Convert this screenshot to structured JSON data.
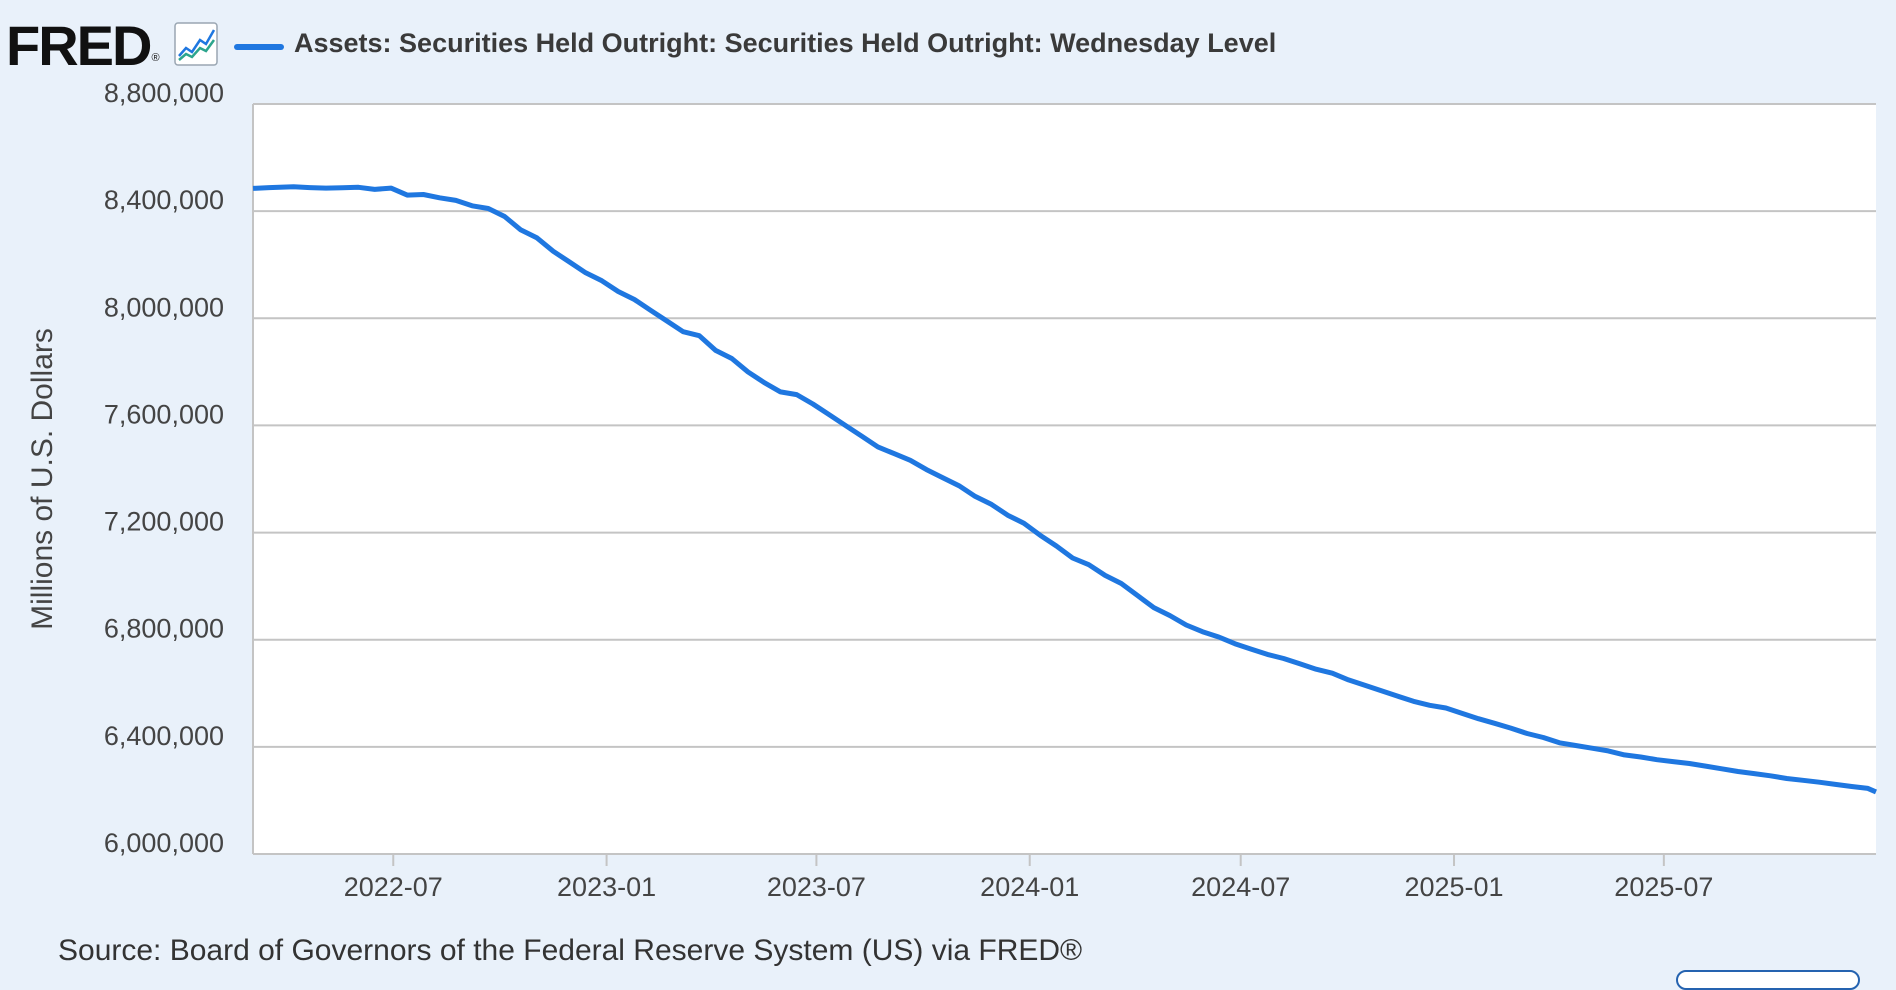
{
  "header": {
    "logo_text": "FRED",
    "logo_mark": "®",
    "logo_icon": "line-graph-icon",
    "legend_label": "Assets: Securities Held Outright: Securities Held Outright: Wednesday Level"
  },
  "source": "Source: Board of Governors of the Federal Reserve System (US) via FRED®",
  "colors": {
    "series": "#1f77e0",
    "grid": "#c4c4c4",
    "background": "#e9f1fa",
    "plot_bg": "#ffffff"
  },
  "chart_data": {
    "type": "line",
    "title": "",
    "xlabel": "",
    "ylabel": "Millions of U.S. Dollars",
    "ylim": [
      6000000,
      8800000
    ],
    "xlim": [
      "2022-03-02",
      "2025-12-31"
    ],
    "y_ticks": [
      "6,000,000",
      "6,400,000",
      "6,800,000",
      "7,200,000",
      "7,600,000",
      "8,000,000",
      "8,400,000",
      "8,800,000"
    ],
    "x_ticks": [
      "2022-07",
      "2023-01",
      "2023-07",
      "2024-01",
      "2024-07",
      "2025-01",
      "2025-07"
    ],
    "grid": true,
    "legend": "top-left",
    "series": [
      {
        "name": "Assets: Securities Held Outright: Securities Held Outright: Wednesday Level",
        "points": [
          [
            "2022-03-02",
            8485000
          ],
          [
            "2022-03-16",
            8488000
          ],
          [
            "2022-04-06",
            8491000
          ],
          [
            "2022-04-20",
            8488000
          ],
          [
            "2022-05-04",
            8486000
          ],
          [
            "2022-05-18",
            8487000
          ],
          [
            "2022-06-01",
            8489000
          ],
          [
            "2022-06-15",
            8481000
          ],
          [
            "2022-06-29",
            8486000
          ],
          [
            "2022-07-13",
            8460000
          ],
          [
            "2022-07-27",
            8462000
          ],
          [
            "2022-08-10",
            8450000
          ],
          [
            "2022-08-24",
            8440000
          ],
          [
            "2022-09-07",
            8420000
          ],
          [
            "2022-09-21",
            8410000
          ],
          [
            "2022-10-05",
            8380000
          ],
          [
            "2022-10-19",
            8330000
          ],
          [
            "2022-11-02",
            8300000
          ],
          [
            "2022-11-16",
            8250000
          ],
          [
            "2022-11-30",
            8210000
          ],
          [
            "2022-12-14",
            8170000
          ],
          [
            "2022-12-28",
            8140000
          ],
          [
            "2023-01-11",
            8100000
          ],
          [
            "2023-01-25",
            8070000
          ],
          [
            "2023-02-08",
            8030000
          ],
          [
            "2023-02-22",
            7990000
          ],
          [
            "2023-03-08",
            7950000
          ],
          [
            "2023-03-22",
            7935000
          ],
          [
            "2023-04-05",
            7880000
          ],
          [
            "2023-04-19",
            7850000
          ],
          [
            "2023-05-03",
            7800000
          ],
          [
            "2023-05-17",
            7760000
          ],
          [
            "2023-05-31",
            7725000
          ],
          [
            "2023-06-14",
            7715000
          ],
          [
            "2023-06-28",
            7680000
          ],
          [
            "2023-07-12",
            7640000
          ],
          [
            "2023-07-26",
            7600000
          ],
          [
            "2023-08-09",
            7560000
          ],
          [
            "2023-08-23",
            7520000
          ],
          [
            "2023-09-06",
            7495000
          ],
          [
            "2023-09-20",
            7470000
          ],
          [
            "2023-10-04",
            7435000
          ],
          [
            "2023-10-18",
            7405000
          ],
          [
            "2023-11-01",
            7375000
          ],
          [
            "2023-11-15",
            7335000
          ],
          [
            "2023-11-29",
            7305000
          ],
          [
            "2023-12-13",
            7265000
          ],
          [
            "2023-12-27",
            7235000
          ],
          [
            "2024-01-10",
            7190000
          ],
          [
            "2024-01-24",
            7150000
          ],
          [
            "2024-02-07",
            7105000
          ],
          [
            "2024-02-21",
            7080000
          ],
          [
            "2024-03-06",
            7040000
          ],
          [
            "2024-03-20",
            7010000
          ],
          [
            "2024-04-03",
            6965000
          ],
          [
            "2024-04-17",
            6920000
          ],
          [
            "2024-05-01",
            6890000
          ],
          [
            "2024-05-15",
            6855000
          ],
          [
            "2024-05-29",
            6830000
          ],
          [
            "2024-06-12",
            6810000
          ],
          [
            "2024-06-26",
            6785000
          ],
          [
            "2024-07-10",
            6765000
          ],
          [
            "2024-07-24",
            6745000
          ],
          [
            "2024-08-07",
            6730000
          ],
          [
            "2024-08-21",
            6710000
          ],
          [
            "2024-09-04",
            6690000
          ],
          [
            "2024-09-18",
            6675000
          ],
          [
            "2024-10-02",
            6650000
          ],
          [
            "2024-10-16",
            6630000
          ],
          [
            "2024-10-30",
            6610000
          ],
          [
            "2024-11-13",
            6590000
          ],
          [
            "2024-11-27",
            6570000
          ],
          [
            "2024-12-11",
            6555000
          ],
          [
            "2024-12-25",
            6545000
          ],
          [
            "2025-01-08",
            6525000
          ],
          [
            "2025-01-22",
            6505000
          ],
          [
            "2025-02-05",
            6488000
          ],
          [
            "2025-02-19",
            6470000
          ],
          [
            "2025-03-05",
            6450000
          ],
          [
            "2025-03-19",
            6435000
          ],
          [
            "2025-04-02",
            6415000
          ],
          [
            "2025-04-16",
            6405000
          ],
          [
            "2025-04-30",
            6395000
          ],
          [
            "2025-05-14",
            6385000
          ],
          [
            "2025-05-28",
            6370000
          ],
          [
            "2025-06-11",
            6362000
          ],
          [
            "2025-06-25",
            6352000
          ],
          [
            "2025-07-09",
            6345000
          ],
          [
            "2025-07-23",
            6338000
          ],
          [
            "2025-08-06",
            6328000
          ],
          [
            "2025-08-20",
            6318000
          ],
          [
            "2025-09-03",
            6308000
          ],
          [
            "2025-09-17",
            6300000
          ],
          [
            "2025-10-01",
            6292000
          ],
          [
            "2025-10-15",
            6282000
          ],
          [
            "2025-10-29",
            6275000
          ],
          [
            "2025-11-12",
            6268000
          ],
          [
            "2025-11-26",
            6260000
          ],
          [
            "2025-12-10",
            6252000
          ],
          [
            "2025-12-24",
            6245000
          ],
          [
            "2025-12-31",
            6232000
          ]
        ]
      }
    ]
  }
}
